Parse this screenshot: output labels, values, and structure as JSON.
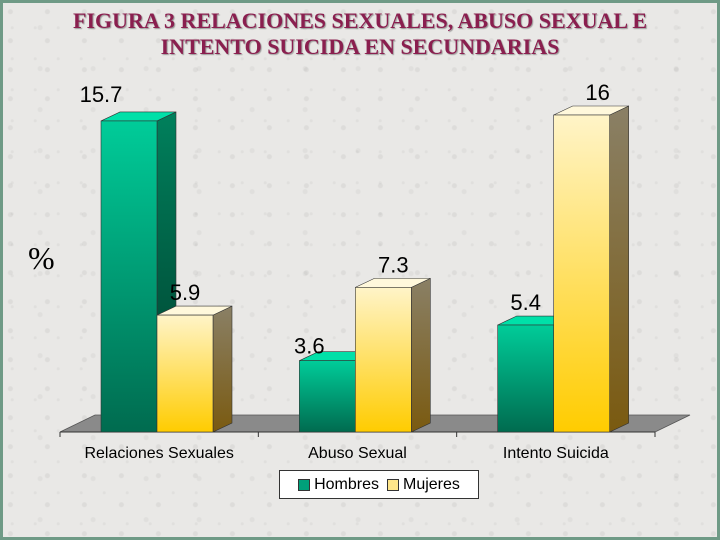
{
  "title_lines": [
    "FIGURA 3 RELACIONES SEXUALES, ABUSO SEXUAL E",
    "INTENTO SUICIDA EN SECUNDARIAS"
  ],
  "y_unit_label": "%",
  "colors": {
    "title": "#8a1f4f",
    "hombres_top": "#00cc99",
    "hombres_bottom": "#006b4f",
    "mujeres_top": "#fff4c8",
    "mujeres_bottom": "#ffcc00",
    "floor": "#8a8a8a"
  },
  "chart_data": {
    "type": "bar",
    "style": "3d-clustered",
    "categories": [
      "Relaciones Sexuales",
      "Abuso Sexual",
      "Intento Suicida"
    ],
    "series": [
      {
        "name": "Hombres",
        "values": [
          15.7,
          3.6,
          5.4
        ],
        "value_labels": [
          "15.7",
          "3.6",
          "5.4"
        ]
      },
      {
        "name": "Mujeres",
        "values": [
          5.9,
          7.3,
          16
        ],
        "value_labels": [
          "5.9",
          "7.3",
          "16"
        ]
      }
    ],
    "ylim": [
      0,
      16
    ],
    "ylabel": "%",
    "xlabel": "",
    "grid": false,
    "legend_position": "bottom"
  }
}
